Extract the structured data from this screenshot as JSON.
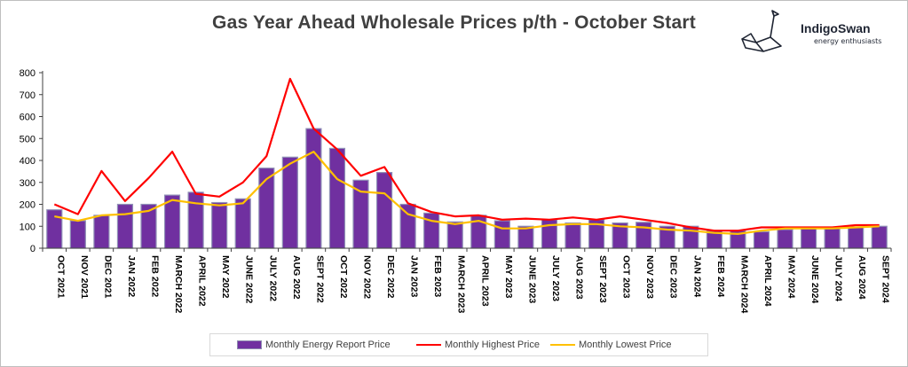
{
  "colors": {
    "bar": "#7030a0",
    "bar_edge": "#8f8fb6",
    "high": "#ff0000",
    "low": "#ffc000",
    "axis": "#404040"
  },
  "logo": {
    "name": "IndigoSwan",
    "tagline": "energy enthusiasts",
    "icon": "swan-icon"
  },
  "chart_data": {
    "type": "bar",
    "title": "Gas Year Ahead Wholesale Prices p/th - October Start",
    "xlabel": "",
    "ylabel": "",
    "ylim": [
      0,
      800
    ],
    "yticks": [
      0,
      100,
      200,
      300,
      400,
      500,
      600,
      700,
      800
    ],
    "grid": false,
    "legend_position": "bottom",
    "categories": [
      "OCT 2021",
      "NOV 2021",
      "DEC  2021",
      "JAN 2022",
      "FEB 2022",
      "MARCH 2022",
      "APRIL 2022",
      "MAY 2022",
      "JUNE 2022",
      "JULY 2022",
      "AUG 2022",
      "SEPT 2022",
      "OCT 2022",
      "NOV 2022",
      "DEC 2022",
      "JAN 2023",
      "FEB 2023",
      "MARCH 2023",
      "APRIL 2023",
      "MAY 2023",
      "JUNE 2023",
      "JULY 2023",
      "AUG 2023",
      "SEPT 2023",
      "OCT 2023",
      "NOV 2023",
      "DEC 2023",
      "JAN 2024",
      "FEB 2024",
      "MARCH 2024",
      "APRIL 2024",
      "MAY 2024",
      "JUNE 2024",
      "JULY 2024",
      "AUG 2024",
      "SEPT 2024"
    ],
    "series": [
      {
        "name": "Monthly Energy Report Price",
        "type": "bar",
        "values": [
          175,
          125,
          150,
          200,
          200,
          242,
          255,
          208,
          225,
          365,
          415,
          545,
          455,
          310,
          345,
          200,
          160,
          120,
          150,
          125,
          100,
          130,
          115,
          130,
          115,
          118,
          100,
          100,
          80,
          80,
          75,
          85,
          90,
          90,
          95,
          100
        ]
      },
      {
        "name": "Monthly Highest Price",
        "type": "line",
        "values": [
          200,
          155,
          352,
          215,
          320,
          440,
          248,
          235,
          300,
          420,
          772,
          545,
          450,
          330,
          370,
          205,
          165,
          145,
          150,
          130,
          135,
          130,
          140,
          130,
          145,
          130,
          115,
          95,
          80,
          80,
          95,
          95,
          95,
          95,
          105,
          105
        ]
      },
      {
        "name": "Monthly Lowest Price",
        "type": "line",
        "values": [
          145,
          125,
          150,
          155,
          170,
          220,
          205,
          195,
          205,
          315,
          385,
          440,
          315,
          258,
          250,
          155,
          125,
          110,
          125,
          90,
          90,
          105,
          110,
          110,
          100,
          95,
          85,
          80,
          70,
          65,
          80,
          90,
          90,
          90,
          95,
          100
        ]
      }
    ]
  }
}
